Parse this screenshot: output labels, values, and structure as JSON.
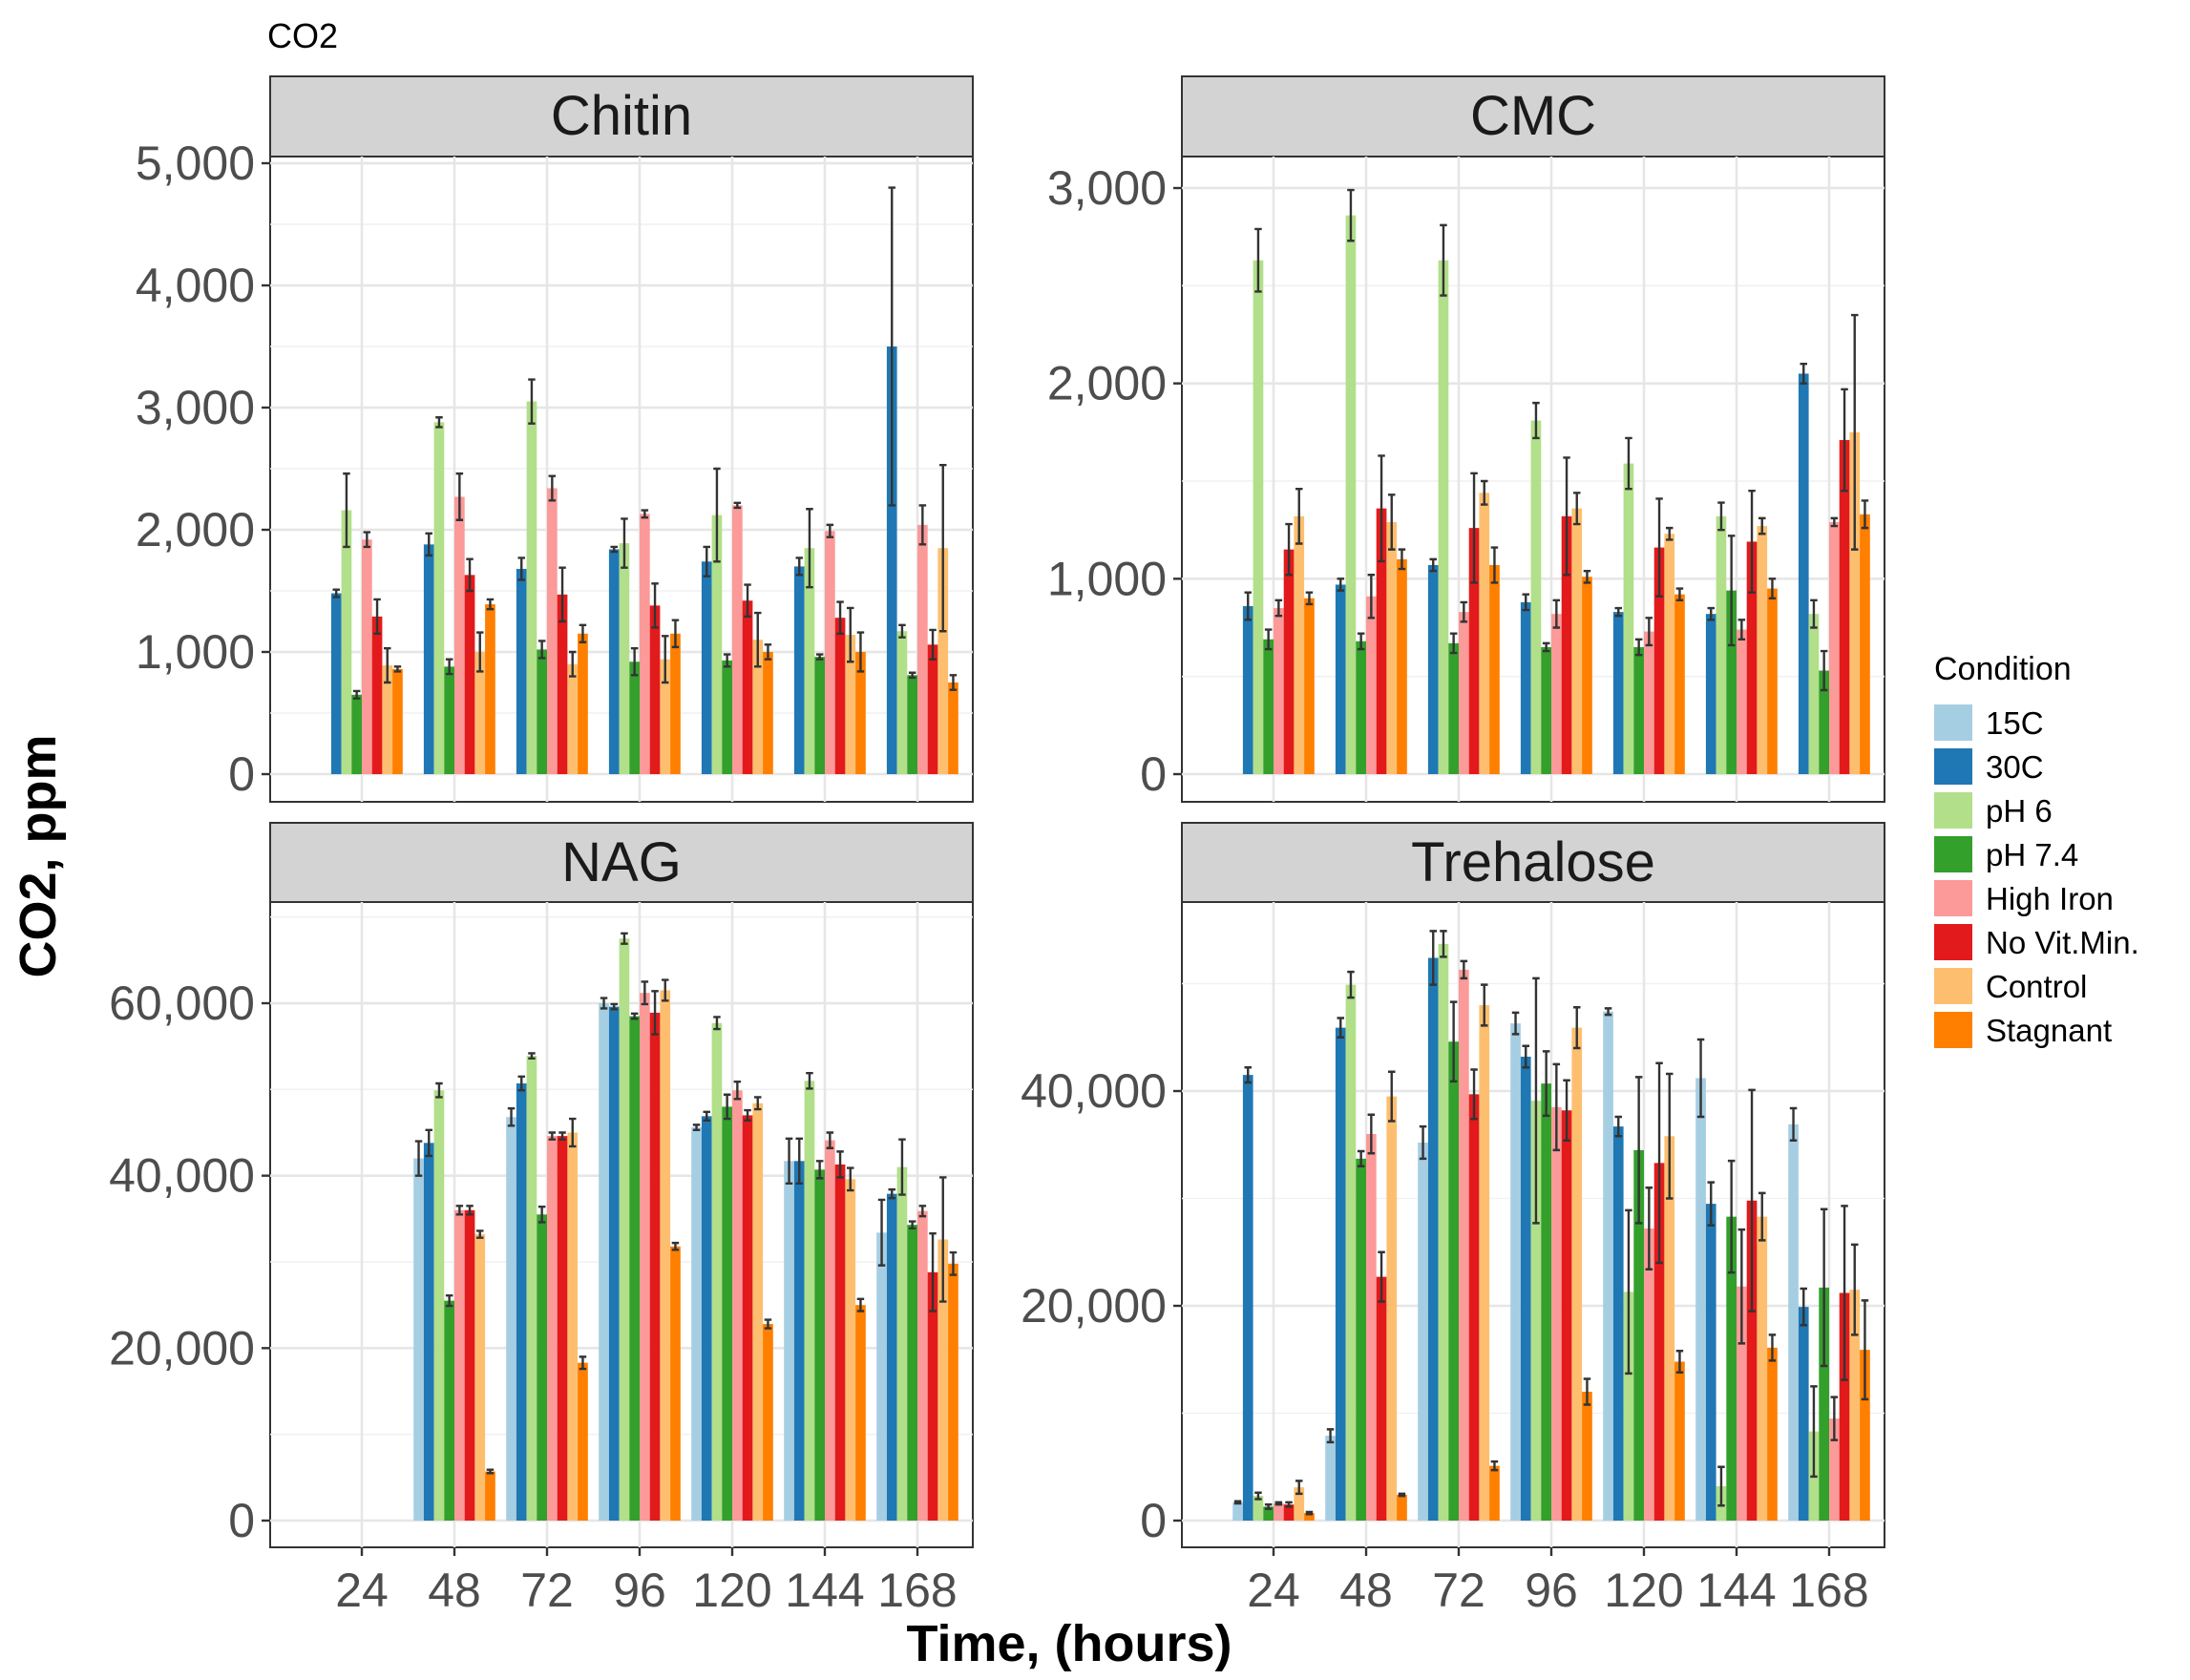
{
  "chart_data": {
    "type": "bar",
    "title": "CO2",
    "xlabel": "Time, (hours)",
    "ylabel": "CO2, ppm",
    "categories": [
      "24",
      "48",
      "72",
      "96",
      "120",
      "144",
      "168"
    ],
    "conditions": [
      "15C",
      "30C",
      "pH 6",
      "pH 7.4",
      "High Iron",
      "No Vit.Min.",
      "Control",
      "Stagnant"
    ],
    "colors": [
      "#a6cee3",
      "#1f78b4",
      "#b2df8a",
      "#33a02c",
      "#fb9a99",
      "#e31a1c",
      "#fdbf6f",
      "#ff7f00"
    ],
    "legend": {
      "title": "Condition",
      "position": "right"
    },
    "grid": true,
    "panels": [
      {
        "name": "Chitin",
        "ylim": [
          0,
          5000
        ],
        "yticks": [
          0,
          1000,
          2000,
          3000,
          4000,
          5000
        ],
        "ytick_labels": [
          "0",
          "1,000",
          "2,000",
          "3,000",
          "4,000",
          "5,000"
        ],
        "series": [
          {
            "name": "15C",
            "values": [
              null,
              null,
              null,
              null,
              null,
              null,
              null
            ],
            "errors": [
              0,
              0,
              0,
              0,
              0,
              0,
              0
            ]
          },
          {
            "name": "30C",
            "values": [
              1480,
              1880,
              1680,
              1840,
              1740,
              1700,
              3500
            ],
            "errors": [
              30,
              90,
              90,
              20,
              120,
              70,
              1300
            ]
          },
          {
            "name": "pH 6",
            "values": [
              2160,
              2880,
              3050,
              1890,
              2120,
              1850,
              1170
            ],
            "errors": [
              300,
              40,
              180,
              200,
              380,
              320,
              50
            ]
          },
          {
            "name": "pH 7.4",
            "values": [
              650,
              880,
              1020,
              920,
              930,
              960,
              810
            ],
            "errors": [
              30,
              60,
              70,
              110,
              50,
              20,
              20
            ]
          },
          {
            "name": "High Iron",
            "values": [
              1920,
              2270,
              2340,
              2130,
              2200,
              1990,
              2040
            ],
            "errors": [
              60,
              190,
              100,
              30,
              20,
              50,
              160
            ]
          },
          {
            "name": "No Vit.Min.",
            "values": [
              1290,
              1630,
              1470,
              1380,
              1420,
              1280,
              1060
            ],
            "errors": [
              140,
              130,
              220,
              180,
              130,
              130,
              120
            ]
          },
          {
            "name": "Control",
            "values": [
              890,
              1000,
              900,
              940,
              1100,
              1140,
              1850
            ],
            "errors": [
              140,
              160,
              100,
              190,
              220,
              220,
              680
            ]
          },
          {
            "name": "Stagnant",
            "values": [
              860,
              1390,
              1150,
              1150,
              1000,
              1000,
              750
            ],
            "errors": [
              20,
              40,
              70,
              110,
              60,
              160,
              60
            ]
          }
        ]
      },
      {
        "name": "CMC",
        "ylim": [
          0,
          3000
        ],
        "yticks": [
          0,
          1000,
          2000,
          3000
        ],
        "ytick_labels": [
          "0",
          "1,000",
          "2,000",
          "3,000"
        ],
        "series": [
          {
            "name": "15C",
            "values": [
              null,
              null,
              null,
              null,
              null,
              null,
              null
            ],
            "errors": [
              0,
              0,
              0,
              0,
              0,
              0,
              0
            ]
          },
          {
            "name": "30C",
            "values": [
              860,
              970,
              1070,
              880,
              830,
              820,
              2050
            ],
            "errors": [
              70,
              30,
              30,
              40,
              20,
              30,
              50
            ]
          },
          {
            "name": "pH 6",
            "values": [
              2630,
              2860,
              2630,
              1810,
              1590,
              1320,
              820
            ],
            "errors": [
              160,
              130,
              180,
              90,
              130,
              70,
              70
            ]
          },
          {
            "name": "pH 7.4",
            "values": [
              690,
              680,
              670,
              650,
              650,
              940,
              530
            ],
            "errors": [
              50,
              40,
              50,
              20,
              40,
              280,
              100
            ]
          },
          {
            "name": "High Iron",
            "values": [
              850,
              910,
              830,
              820,
              730,
              740,
              1290
            ],
            "errors": [
              40,
              110,
              50,
              70,
              70,
              50,
              20
            ]
          },
          {
            "name": "No Vit.Min.",
            "values": [
              1150,
              1360,
              1260,
              1320,
              1160,
              1190,
              1710
            ],
            "errors": [
              130,
              270,
              280,
              300,
              250,
              260,
              260
            ]
          },
          {
            "name": "Control",
            "values": [
              1320,
              1290,
              1440,
              1360,
              1230,
              1270,
              1750
            ],
            "errors": [
              140,
              140,
              60,
              80,
              30,
              40,
              600
            ]
          },
          {
            "name": "Stagnant",
            "values": [
              900,
              1100,
              1070,
              1010,
              920,
              950,
              1330
            ],
            "errors": [
              30,
              50,
              90,
              30,
              30,
              50,
              70
            ]
          }
        ]
      },
      {
        "name": "NAG",
        "ylim": [
          0,
          70000
        ],
        "yticks": [
          0,
          20000,
          40000,
          60000
        ],
        "ytick_labels": [
          "0",
          "20,000",
          "40,000",
          "60,000"
        ],
        "series": [
          {
            "name": "15C",
            "values": [
              null,
              42000,
              46800,
              60000,
              45600,
              41700,
              33400
            ],
            "errors": [
              0,
              2000,
              1000,
              600,
              300,
              2600,
              3800
            ]
          },
          {
            "name": "30C",
            "values": [
              null,
              43800,
              50700,
              59600,
              46900,
              41700,
              37900
            ],
            "errors": [
              0,
              1500,
              800,
              300,
              500,
              2600,
              500
            ]
          },
          {
            "name": "pH 6",
            "values": [
              null,
              49900,
              53900,
              67500,
              57700,
              51000,
              41000
            ],
            "errors": [
              0,
              800,
              300,
              600,
              700,
              900,
              3200
            ]
          },
          {
            "name": "pH 7.4",
            "values": [
              null,
              25500,
              35500,
              58500,
              48000,
              40700,
              34300
            ],
            "errors": [
              0,
              600,
              900,
              300,
              1400,
              1000,
              400
            ]
          },
          {
            "name": "High Iron",
            "values": [
              null,
              36000,
              44600,
              61200,
              49900,
              44100,
              35900
            ],
            "errors": [
              0,
              500,
              400,
              1300,
              1000,
              900,
              600
            ]
          },
          {
            "name": "No Vit.Min.",
            "values": [
              null,
              36000,
              44600,
              58900,
              47000,
              41300,
              28800
            ],
            "errors": [
              0,
              500,
              400,
              2500,
              600,
              1500,
              4500
            ]
          },
          {
            "name": "Control",
            "values": [
              null,
              33200,
              45000,
              61500,
              48400,
              39600,
              32600
            ],
            "errors": [
              0,
              400,
              1600,
              1200,
              700,
              1300,
              7200
            ]
          },
          {
            "name": "Stagnant",
            "values": [
              null,
              5700,
              18300,
              31800,
              22800,
              25000,
              29800
            ],
            "errors": [
              0,
              200,
              700,
              400,
              500,
              700,
              1300
            ]
          }
        ]
      },
      {
        "name": "Trehalose",
        "ylim": [
          0,
          56000
        ],
        "yticks": [
          0,
          20000,
          40000
        ],
        "ytick_labels": [
          "0",
          "20,000",
          "40,000"
        ],
        "series": [
          {
            "name": "15C",
            "values": [
              1700,
              7900,
              35200,
              46300,
              47400,
              41200,
              36900
            ],
            "errors": [
              100,
              600,
              1500,
              1000,
              300,
              3600,
              1500
            ]
          },
          {
            "name": "30C",
            "values": [
              41500,
              45900,
              52400,
              43200,
              36700,
              29500,
              19900
            ],
            "errors": [
              700,
              900,
              2500,
              1000,
              900,
              2000,
              1700
            ]
          },
          {
            "name": "pH 6",
            "values": [
              2300,
              49900,
              53700,
              39100,
              21300,
              3200,
              8300
            ],
            "errors": [
              300,
              1200,
              1200,
              11400,
              7600,
              1800,
              4200
            ]
          },
          {
            "name": "pH 7.4",
            "values": [
              1300,
              33700,
              44600,
              40700,
              34500,
              28300,
              21700
            ],
            "errors": [
              200,
              700,
              3700,
              3000,
              6800,
              5200,
              7300
            ]
          },
          {
            "name": "High Iron",
            "values": [
              1600,
              36000,
              51300,
              38500,
              27200,
              21800,
              9500
            ],
            "errors": [
              100,
              1800,
              800,
              4000,
              3800,
              5300,
              2000
            ]
          },
          {
            "name": "No Vit.Min.",
            "values": [
              1500,
              22700,
              39700,
              38200,
              33300,
              29800,
              21200
            ],
            "errors": [
              200,
              2300,
              2300,
              2800,
              9300,
              10300,
              8100
            ]
          },
          {
            "name": "Control",
            "values": [
              3100,
              39500,
              48000,
              45900,
              35800,
              28300,
              21500
            ],
            "errors": [
              600,
              2300,
              1900,
              1900,
              5800,
              2200,
              4200
            ]
          },
          {
            "name": "Stagnant",
            "values": [
              700,
              2400,
              5100,
              12000,
              14800,
              16100,
              15900
            ],
            "errors": [
              100,
              100,
              400,
              1200,
              1000,
              1200,
              4600
            ]
          }
        ]
      }
    ]
  }
}
